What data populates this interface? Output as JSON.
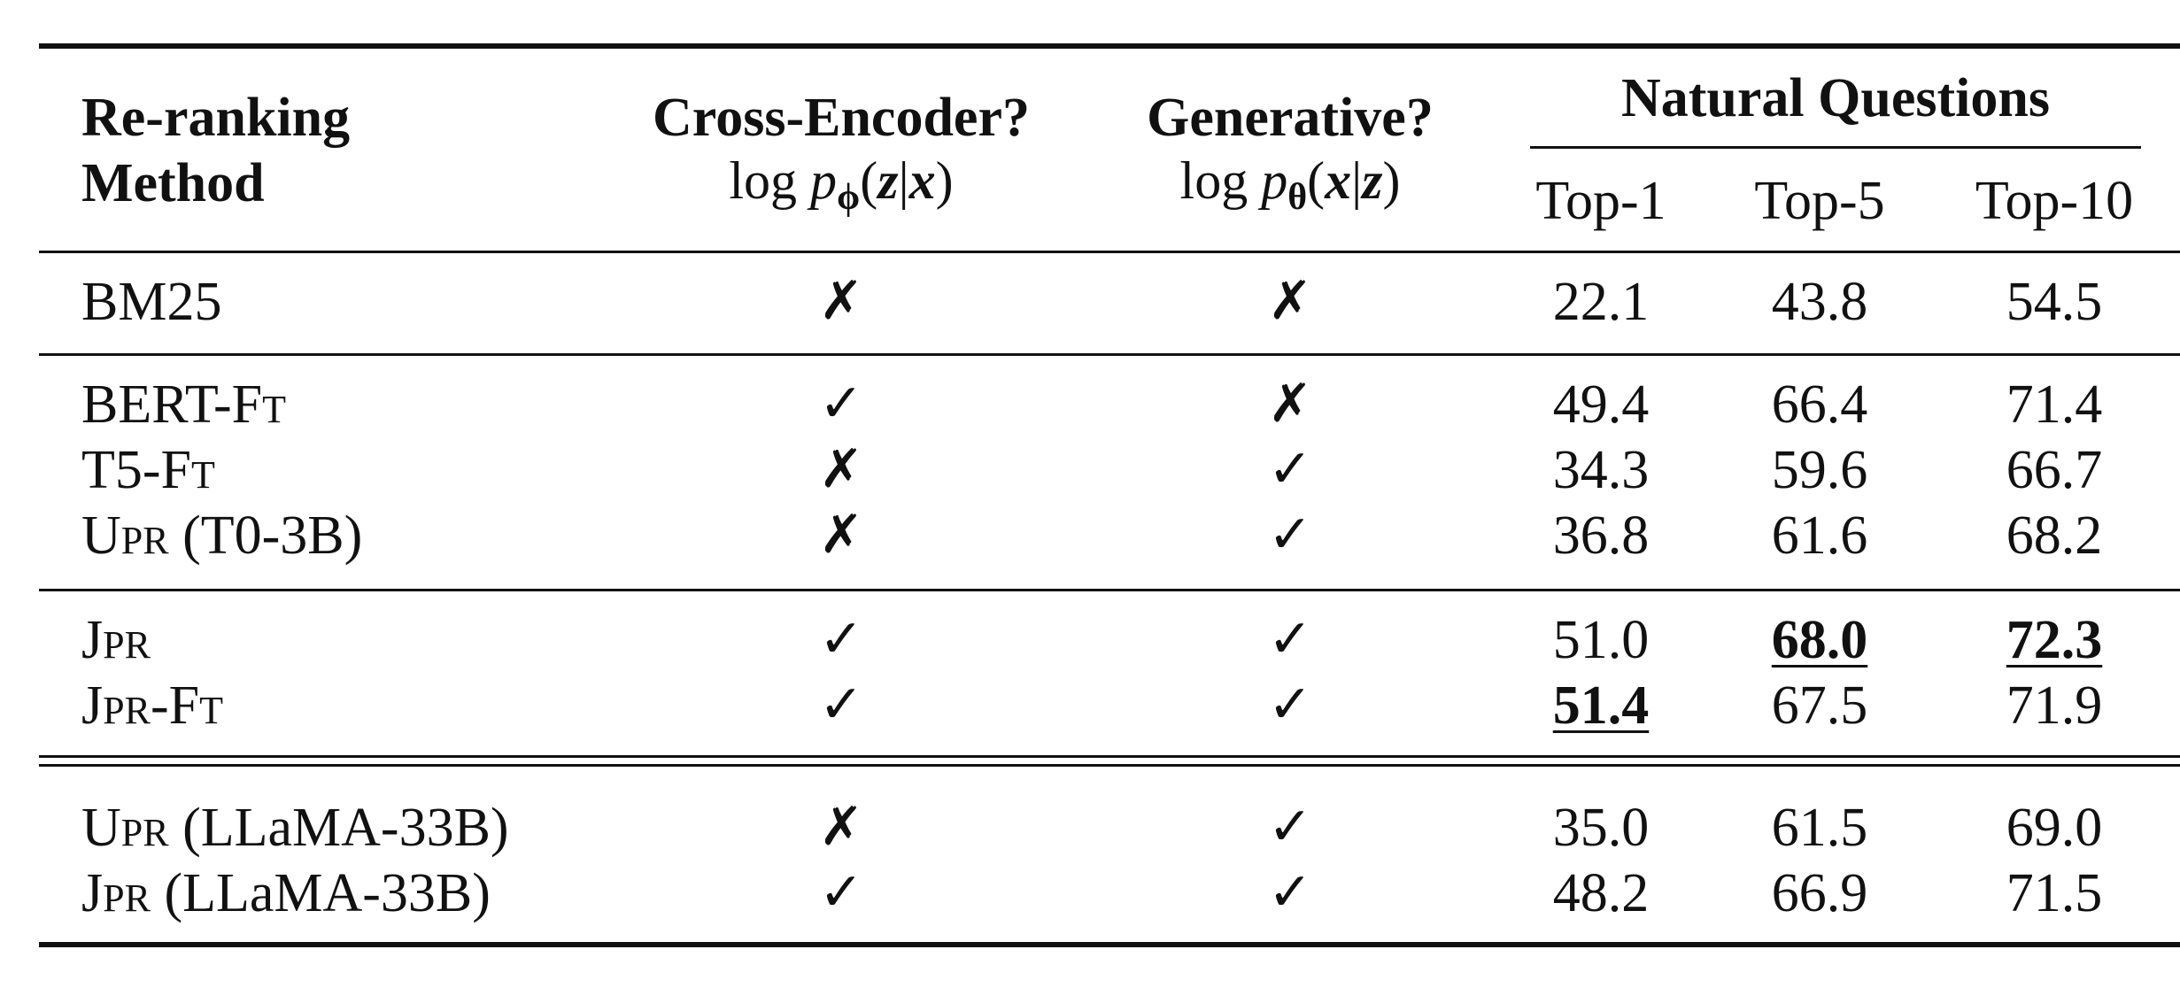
{
  "table": {
    "header": {
      "method_line1": "Re-ranking",
      "method_line2": "Method",
      "cross_encoder": "Cross-Encoder?",
      "generative": "Generative?",
      "group": "Natural Questions",
      "top1": "Top-1",
      "top5": "Top-5",
      "top10": "Top-10"
    },
    "formulas": {
      "cross": {
        "pre": "log ",
        "p": "p",
        "sub": "ϕ",
        "x": "x",
        "z": "z"
      },
      "gen": {
        "pre": "log ",
        "p": "p",
        "sub": "θ",
        "x": "x",
        "z": "z"
      }
    },
    "marks": {
      "check": "✓",
      "cross": "✗"
    },
    "rows": [
      {
        "method": "BM25",
        "cross": "✗",
        "gen": "✗",
        "top1": "22.1",
        "top5": "43.8",
        "top10": "54.5"
      },
      {
        "method_a": "BERT-F",
        "method_a_sc": "T",
        "cross": "✓",
        "gen": "✗",
        "top1": "49.4",
        "top5": "66.4",
        "top10": "71.4"
      },
      {
        "method_a": "T5-F",
        "method_a_sc": "T",
        "cross": "✗",
        "gen": "✓",
        "top1": "34.3",
        "top5": "59.6",
        "top10": "66.7"
      },
      {
        "method_a": "U",
        "method_a_sc": "PR",
        "method_b": " (T0-3B)",
        "cross": "✗",
        "gen": "✓",
        "top1": "36.8",
        "top5": "61.6",
        "top10": "68.2"
      },
      {
        "method_a": "J",
        "method_a_sc": "PR",
        "cross": "✓",
        "gen": "✓",
        "top1": "51.0",
        "top5": "68.0",
        "top10": "72.3"
      },
      {
        "method_a": "J",
        "method_a_sc": "PR",
        "method_b": "-F",
        "method_b_sc": "T",
        "cross": "✓",
        "gen": "✓",
        "top1": "51.4",
        "top5": "67.5",
        "top10": "71.9"
      },
      {
        "method_a": "U",
        "method_a_sc": "PR",
        "method_b": " (LLaMA-33B)",
        "cross": "✗",
        "gen": "✓",
        "top1": "35.0",
        "top5": "61.5",
        "top10": "69.0"
      },
      {
        "method_a": "J",
        "method_a_sc": "PR",
        "method_b": " (LLaMA-33B)",
        "cross": "✓",
        "gen": "✓",
        "top1": "48.2",
        "top5": "66.9",
        "top10": "71.5"
      }
    ],
    "best": {
      "top1_row": 5,
      "top5_row": 4,
      "top10_row": 4
    }
  }
}
